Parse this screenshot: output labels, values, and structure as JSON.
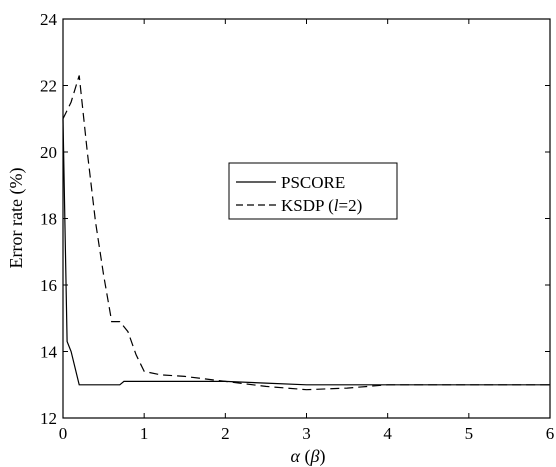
{
  "chart_data": {
    "type": "line",
    "xlabel": "α (β)",
    "ylabel": "Error rate (%)",
    "xlim": [
      0,
      6
    ],
    "ylim": [
      12,
      24
    ],
    "xticks": [
      "0",
      "1",
      "2",
      "3",
      "4",
      "5",
      "6"
    ],
    "yticks": [
      "12",
      "14",
      "16",
      "18",
      "20",
      "22",
      "24"
    ],
    "grid": false,
    "legend_position": "center",
    "series": [
      {
        "name": "PSCORE",
        "style": "solid",
        "color": "#000000",
        "x": [
          0,
          0.05,
          0.1,
          0.2,
          0.3,
          0.4,
          0.5,
          0.6,
          0.7,
          0.75,
          0.8,
          1,
          1.5,
          2,
          2.5,
          3,
          3.5,
          4,
          4.5,
          5,
          5.5,
          6
        ],
        "y": [
          21,
          14.3,
          14.0,
          13.0,
          13.0,
          13.0,
          13.0,
          13.0,
          13.0,
          13.1,
          13.1,
          13.1,
          13.1,
          13.1,
          13.05,
          13.0,
          13.0,
          13.0,
          13.0,
          13.0,
          13.0,
          13.0
        ]
      },
      {
        "name": "KSDP (l=2)",
        "style": "dashed",
        "color": "#000000",
        "x": [
          0,
          0.1,
          0.2,
          0.3,
          0.4,
          0.5,
          0.6,
          0.7,
          0.8,
          0.9,
          1.0,
          1.2,
          1.5,
          2.0,
          2.5,
          3.0,
          3.5,
          4.0,
          4.5,
          5,
          5.5,
          6
        ],
        "y": [
          21.0,
          21.5,
          22.3,
          20.0,
          17.9,
          16.3,
          14.9,
          14.9,
          14.6,
          13.9,
          13.4,
          13.3,
          13.25,
          13.1,
          12.95,
          12.85,
          12.9,
          13.0,
          13.0,
          13.0,
          13.0,
          13.0
        ]
      }
    ],
    "legend_labels": {
      "pscore": "PSCORE",
      "ksdp_prefix": "KSDP (",
      "ksdp_var": "l",
      "ksdp_suffix": "=2)"
    },
    "axis_label_parts": {
      "alpha": "α",
      "beta_open": " (",
      "beta": "β",
      "beta_close": ")"
    }
  }
}
